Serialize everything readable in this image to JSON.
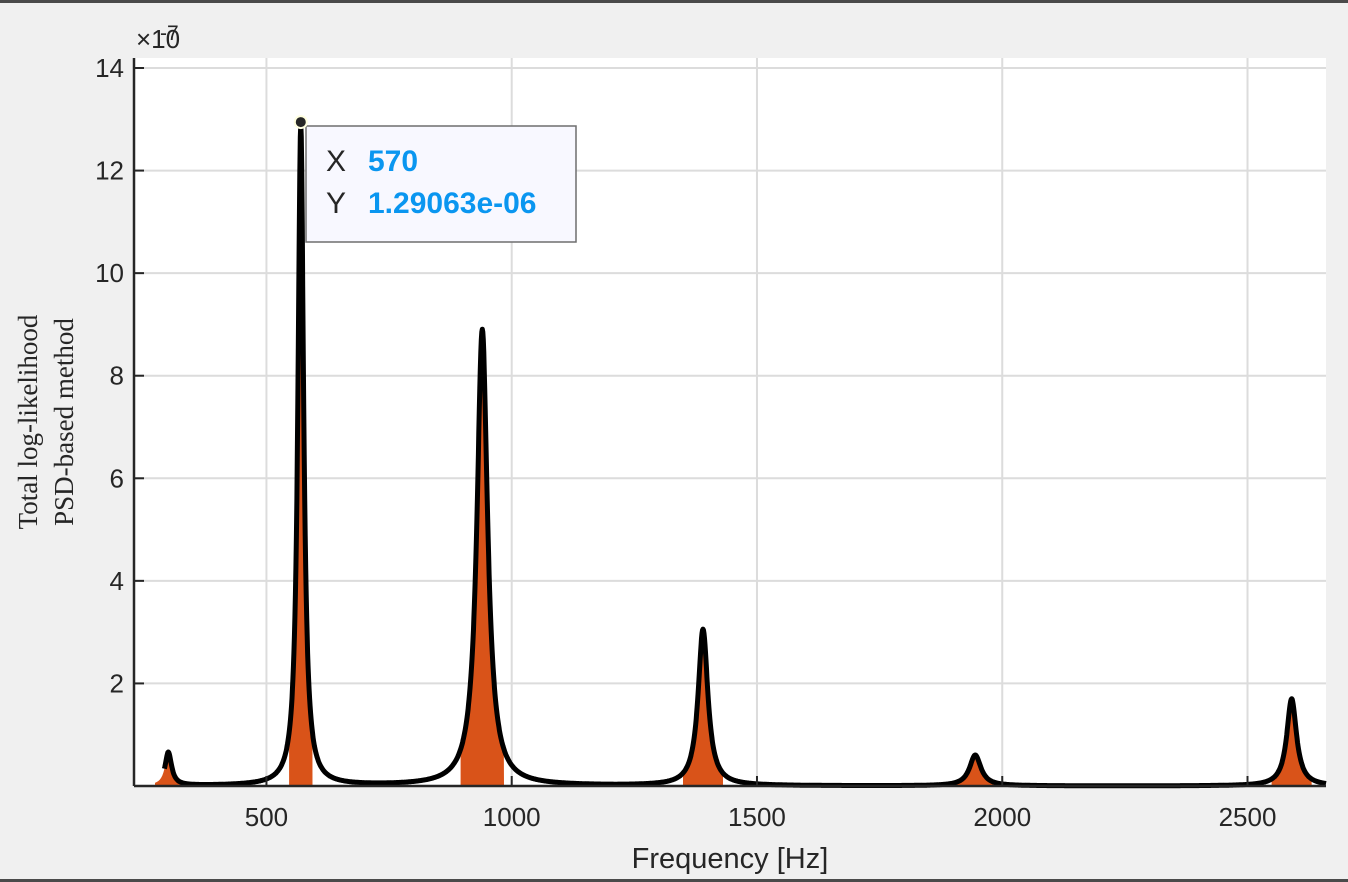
{
  "chart_data": {
    "type": "line",
    "xlabel": "Frequency [Hz]",
    "ylabel_lines": [
      "Total log-likelihood",
      "PSD-based method"
    ],
    "exponent_label": "×10",
    "exponent_power": "-7",
    "xlim": [
      230,
      2660
    ],
    "ylim": [
      0,
      14
    ],
    "x_ticks": [
      500,
      1000,
      1500,
      2000,
      2500
    ],
    "x_tick_labels": [
      "500",
      "1000",
      "1500",
      "2000",
      "2500"
    ],
    "y_ticks": [
      2,
      4,
      6,
      8,
      10,
      12,
      14
    ],
    "y_tick_labels": [
      "2",
      "4",
      "6",
      "8",
      "10",
      "12",
      "14"
    ],
    "grid": true,
    "line_color": "#000000",
    "fill_color": "#d95319",
    "peaks": [
      {
        "x": 300,
        "y": 0.65,
        "w": 8
      },
      {
        "x": 570,
        "y": 12.9,
        "w": 7
      },
      {
        "x": 940,
        "y": 8.9,
        "w": 13
      },
      {
        "x": 1390,
        "y": 3.05,
        "w": 12
      },
      {
        "x": 1945,
        "y": 0.6,
        "w": 14
      },
      {
        "x": 2590,
        "y": 1.7,
        "w": 12
      }
    ],
    "datatip": {
      "x_key": "X",
      "x_value": "570",
      "y_key": "Y",
      "y_value": "1.29063e-06",
      "point_x": 570,
      "point_y": 12.9063
    }
  }
}
